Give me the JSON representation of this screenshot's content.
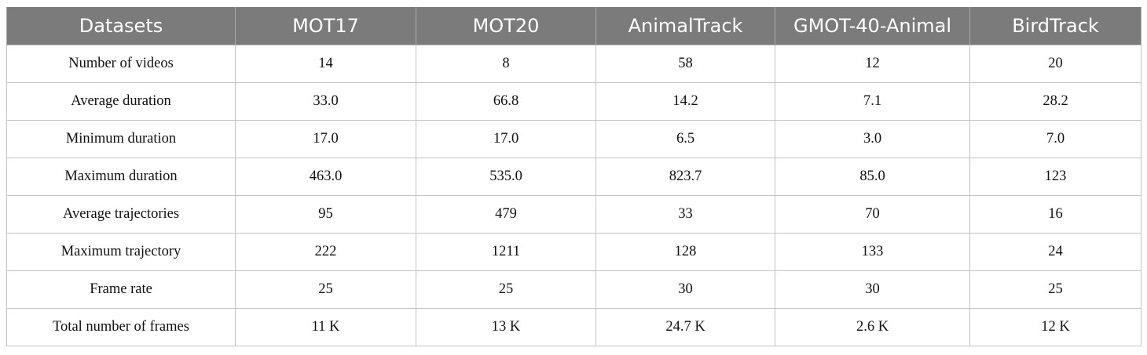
{
  "table": {
    "headers": [
      "Datasets",
      "MOT17",
      "MOT20",
      "AnimalTrack",
      "GMOT-40-Animal",
      "BirdTrack"
    ],
    "rows": [
      [
        "Number of videos",
        "14",
        "8",
        "58",
        "12",
        "20"
      ],
      [
        "Average duration",
        "33.0",
        "66.8",
        "14.2",
        "7.1",
        "28.2"
      ],
      [
        "Minimum duration",
        "17.0",
        "17.0",
        "6.5",
        "3.0",
        "7.0"
      ],
      [
        "Maximum duration",
        "463.0",
        "535.0",
        "823.7",
        "85.0",
        "123"
      ],
      [
        "Average trajectories",
        "95",
        "479",
        "33",
        "70",
        "16"
      ],
      [
        "Maximum trajectory",
        "222",
        "1211",
        "128",
        "133",
        "24"
      ],
      [
        "Frame rate",
        "25",
        "25",
        "30",
        "30",
        "25"
      ],
      [
        "Total number of frames",
        "11 K",
        "13 K",
        "24.7 K",
        "2.6 K",
        "12 K"
      ]
    ]
  },
  "colors": {
    "header_bg": "#7a7b7a",
    "header_text": "#ffffff",
    "grid": "#c4c4c4"
  }
}
